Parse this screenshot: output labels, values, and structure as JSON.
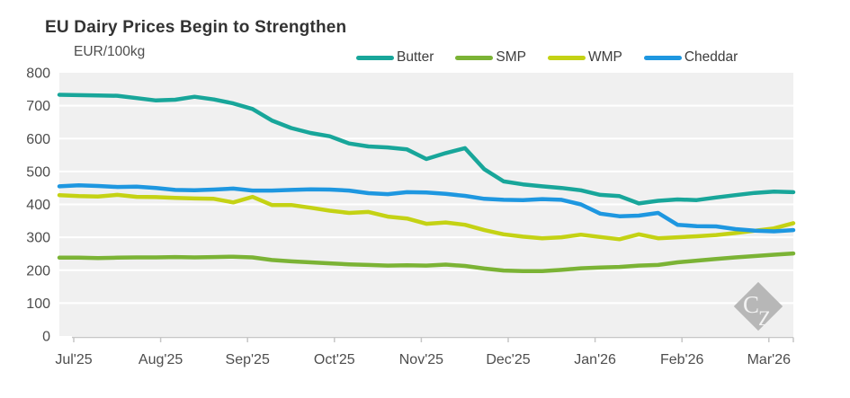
{
  "chart_data": {
    "type": "line",
    "title": "EU Dairy Prices Begin to Strengthen",
    "ylabel": "EUR/100kg",
    "xlabel": "",
    "x_tick_labels": [
      "Jul'25",
      "Aug'25",
      "Sep'25",
      "Oct'25",
      "Nov'25",
      "Dec'25",
      "Jan'26",
      "Feb'26",
      "Mar'26"
    ],
    "y_ticks": [
      0,
      100,
      200,
      300,
      400,
      500,
      600,
      700,
      800
    ],
    "ylim": [
      0,
      800
    ],
    "grid": "horizontal",
    "legend_position": "top-right",
    "x_unit": "weekly",
    "series": [
      {
        "name": "Butter",
        "color": "#18A69A",
        "values": [
          733,
          732,
          731,
          730,
          723,
          716,
          718,
          727,
          719,
          707,
          690,
          655,
          632,
          617,
          607,
          585,
          576,
          573,
          567,
          538,
          556,
          571,
          507,
          470,
          461,
          455,
          450,
          443,
          429,
          425,
          403,
          411,
          415,
          413,
          421,
          428,
          435,
          439,
          437
        ]
      },
      {
        "name": "SMP",
        "color": "#7BB335",
        "values": [
          238,
          238,
          237,
          238,
          239,
          239,
          240,
          239,
          240,
          241,
          239,
          231,
          227,
          224,
          221,
          218,
          216,
          214,
          215,
          214,
          217,
          213,
          205,
          199,
          197,
          197,
          201,
          206,
          208,
          210,
          214,
          216,
          224,
          229,
          234,
          239,
          243,
          247,
          251
        ]
      },
      {
        "name": "WMP",
        "color": "#C4D214",
        "values": [
          428,
          425,
          424,
          429,
          423,
          422,
          420,
          418,
          417,
          406,
          423,
          398,
          398,
          390,
          381,
          374,
          377,
          363,
          357,
          341,
          345,
          338,
          322,
          309,
          302,
          297,
          300,
          308,
          301,
          294,
          309,
          297,
          300,
          303,
          307,
          313,
          320,
          327,
          343
        ]
      },
      {
        "name": "Cheddar",
        "color": "#1E97E0",
        "values": [
          455,
          458,
          456,
          453,
          454,
          450,
          444,
          443,
          445,
          448,
          442,
          442,
          444,
          446,
          445,
          442,
          434,
          431,
          437,
          436,
          432,
          426,
          417,
          414,
          413,
          416,
          414,
          400,
          372,
          364,
          366,
          374,
          338,
          334,
          333,
          325,
          320,
          318,
          322
        ]
      }
    ]
  },
  "watermark": {
    "text_c": "C",
    "text_z": "Z"
  },
  "style_colors": {
    "plot_background": "#f0f0f0",
    "gridline": "#ffffff",
    "axis": "#c6c6c6",
    "text": "#4d4d4d",
    "title_text": "#333333",
    "watermark_diamond": "#b7b7b7"
  }
}
